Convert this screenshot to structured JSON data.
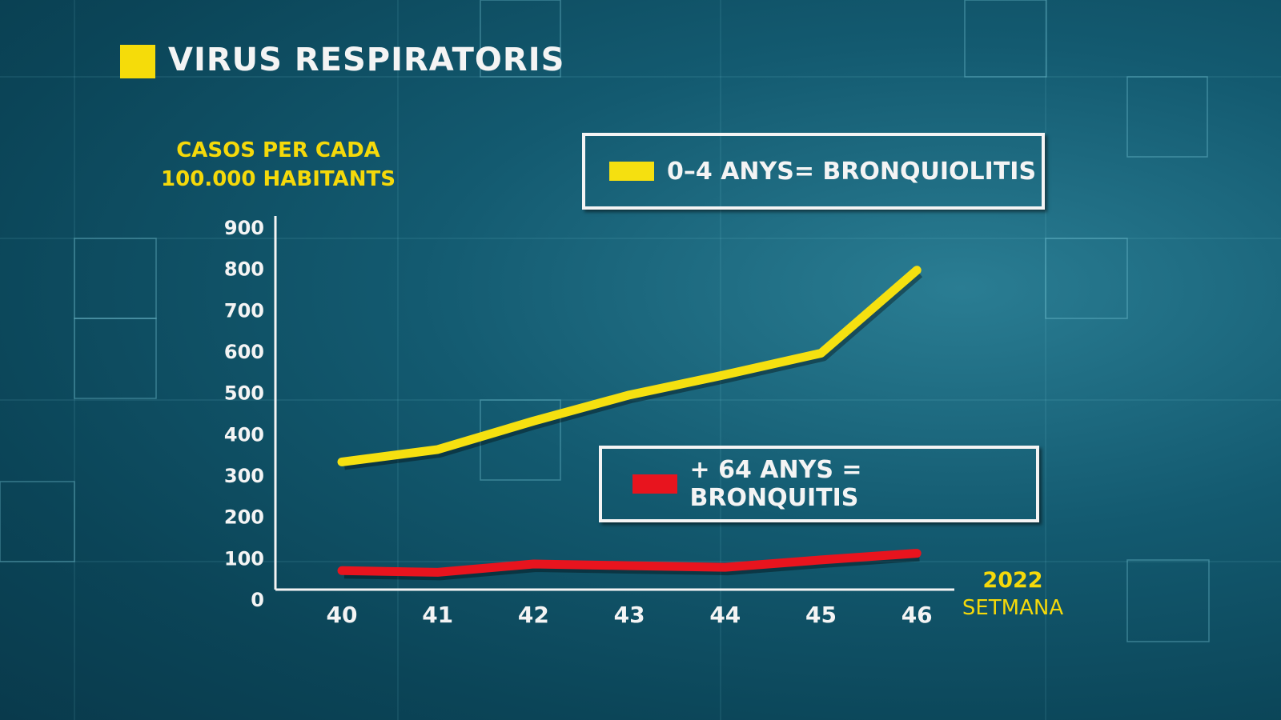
{
  "chart_data": {
    "type": "line",
    "title": "VIRUS RESPIRATORIS",
    "ylabel": "CASOS PER CADA 100.000 HABITANTS",
    "xlabel": "SETMANA",
    "x_annotation": "2022",
    "categories": [
      "40",
      "41",
      "42",
      "43",
      "44",
      "45",
      "46"
    ],
    "series": [
      {
        "name": "0–4 ANYS= BRONQUIOLITIS",
        "color": "#f5e010",
        "values": [
          336,
          366,
          435,
          498,
          547,
          599,
          800
        ]
      },
      {
        "name": "+ 64 ANYS = BRONQUITIS",
        "color": "#e8141e",
        "values": [
          73,
          69,
          89,
          85,
          81,
          99,
          115
        ]
      }
    ],
    "ylim": [
      0,
      900
    ],
    "yticks": [
      0,
      100,
      200,
      300,
      400,
      500,
      600,
      700,
      800,
      900
    ],
    "grid": false
  }
}
